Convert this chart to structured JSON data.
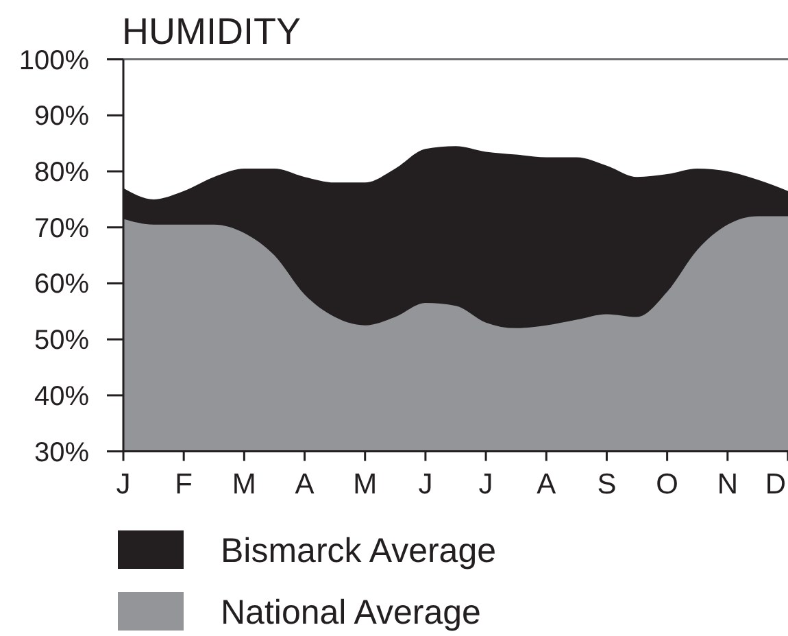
{
  "chart_data": {
    "type": "area",
    "title": "HUMIDITY",
    "categories": [
      "J",
      null,
      "F",
      null,
      "M",
      null,
      "A",
      null,
      "M",
      null,
      "J",
      null,
      "J",
      null,
      "A",
      null,
      "S",
      null,
      "O",
      null,
      "N",
      null,
      "D"
    ],
    "ylim": [
      30,
      100
    ],
    "yticks": [
      {
        "value": 30,
        "label": "30%"
      },
      {
        "value": 40,
        "label": "40%"
      },
      {
        "value": 50,
        "label": "50%"
      },
      {
        "value": 60,
        "label": "60%"
      },
      {
        "value": 70,
        "label": "70%"
      },
      {
        "value": 80,
        "label": "80%"
      },
      {
        "value": 90,
        "label": "90%"
      },
      {
        "value": 100,
        "label": "100%"
      }
    ],
    "legend": "bottom",
    "series": [
      {
        "name": "Bismarck Average",
        "color": "#231f20",
        "values": [
          77,
          75,
          76.5,
          79,
          80.5,
          80.5,
          79,
          78,
          78,
          80.5,
          84,
          84.5,
          83.5,
          83,
          82.5,
          82.5,
          81,
          79,
          79.5,
          80.5,
          80,
          78.5,
          76.5
        ]
      },
      {
        "name": "National Average",
        "color": "#939598",
        "values": [
          71.5,
          70.5,
          70.5,
          70.5,
          69,
          65,
          58,
          54,
          52.5,
          54,
          56.5,
          56,
          53,
          52,
          52.5,
          53.5,
          54.5,
          54,
          58.5,
          66,
          70.5,
          72,
          72
        ]
      }
    ]
  }
}
